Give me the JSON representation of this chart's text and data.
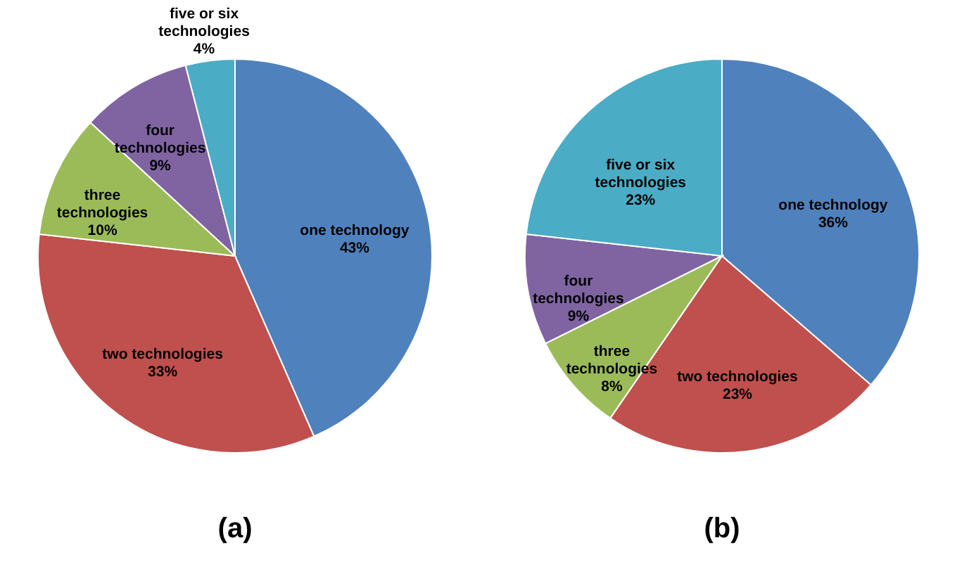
{
  "chart_data": [
    {
      "type": "pie",
      "title": "(a)",
      "categories": [
        "one technology",
        "two technologies",
        "three technologies",
        "four technologies",
        "five or six technologies"
      ],
      "values": [
        43,
        33,
        10,
        9,
        4
      ],
      "value_labels": [
        "43%",
        "33%",
        "10%",
        "9%",
        "4%"
      ],
      "colors": [
        "#4f81bd",
        "#c0504d",
        "#9bbb59",
        "#8064a2",
        "#4bacc6"
      ],
      "legend": false
    },
    {
      "type": "pie",
      "title": "(b)",
      "categories": [
        "one technology",
        "two technologies",
        "three technologies",
        "four technologies",
        "five or six technologies"
      ],
      "values": [
        36,
        23,
        8,
        9,
        23
      ],
      "value_labels": [
        "36%",
        "23%",
        "8%",
        "9%",
        "23%"
      ],
      "colors": [
        "#4f81bd",
        "#c0504d",
        "#9bbb59",
        "#8064a2",
        "#4bacc6"
      ],
      "legend": false
    }
  ]
}
